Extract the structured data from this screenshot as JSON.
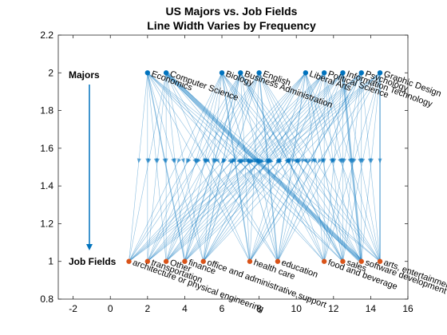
{
  "chart_data": {
    "type": "line",
    "title": "US Majors vs. Job Fields",
    "subtitle": "Line Width Varies by Frequency",
    "xlim": [
      -2.8,
      16
    ],
    "ylim": [
      0.8,
      2.2
    ],
    "xticks": [
      -2,
      0,
      2,
      4,
      6,
      8,
      10,
      12,
      14,
      16
    ],
    "yticks": [
      0.8,
      1,
      1.2,
      1.4,
      1.6,
      1.8,
      2,
      2.2
    ],
    "grid": false,
    "arrowhead_y": 1.52,
    "majors": {
      "label": "Majors",
      "y": 2,
      "color": "#0072BD",
      "nodes": [
        {
          "name": "Economics",
          "x": 2
        },
        {
          "name": "Computer Science",
          "x": 3
        },
        {
          "name": "Biology",
          "x": 6
        },
        {
          "name": "Business Administration",
          "x": 7
        },
        {
          "name": "English",
          "x": 8
        },
        {
          "name": "Liberal Arts",
          "x": 10.5
        },
        {
          "name": "Political Science",
          "x": 11.5
        },
        {
          "name": "Information Technology",
          "x": 12.5
        },
        {
          "name": "Psychology",
          "x": 13.5
        },
        {
          "name": "Graphic Design",
          "x": 14.5
        }
      ]
    },
    "jobs": {
      "label": "Job Fields",
      "y": 1,
      "color": "#D95319",
      "nodes": [
        {
          "name": "architecture or physical engineering",
          "x": 1
        },
        {
          "name": "transportation",
          "x": 2
        },
        {
          "name": "Other",
          "x": 3
        },
        {
          "name": "finance",
          "x": 4
        },
        {
          "name": "office and administrative support",
          "x": 5
        },
        {
          "name": "health care",
          "x": 7.5
        },
        {
          "name": "education",
          "x": 9
        },
        {
          "name": "food and beverage",
          "x": 11.5
        },
        {
          "name": "sales",
          "x": 12.5
        },
        {
          "name": "software development and",
          "x": 13.5
        },
        {
          "name": "arts, entertainment",
          "x": 14.5
        }
      ]
    },
    "edges": [
      {
        "from": 0,
        "to": 0,
        "w": 0.6
      },
      {
        "from": 0,
        "to": 1,
        "w": 0.6
      },
      {
        "from": 0,
        "to": 2,
        "w": 0.6
      },
      {
        "from": 0,
        "to": 3,
        "w": 1.4
      },
      {
        "from": 0,
        "to": 4,
        "w": 0.6
      },
      {
        "from": 0,
        "to": 5,
        "w": 0.6
      },
      {
        "from": 0,
        "to": 6,
        "w": 0.6
      },
      {
        "from": 0,
        "to": 7,
        "w": 0.6
      },
      {
        "from": 0,
        "to": 8,
        "w": 0.8
      },
      {
        "from": 0,
        "to": 9,
        "w": 0.6
      },
      {
        "from": 0,
        "to": 10,
        "w": 0.6
      },
      {
        "from": 1,
        "to": 0,
        "w": 0.6
      },
      {
        "from": 1,
        "to": 1,
        "w": 0.6
      },
      {
        "from": 1,
        "to": 2,
        "w": 0.6
      },
      {
        "from": 1,
        "to": 3,
        "w": 0.6
      },
      {
        "from": 1,
        "to": 4,
        "w": 0.6
      },
      {
        "from": 1,
        "to": 5,
        "w": 0.6
      },
      {
        "from": 1,
        "to": 6,
        "w": 0.6
      },
      {
        "from": 1,
        "to": 7,
        "w": 0.6
      },
      {
        "from": 1,
        "to": 8,
        "w": 0.6
      },
      {
        "from": 1,
        "to": 9,
        "w": 5
      },
      {
        "from": 1,
        "to": 10,
        "w": 0.6
      },
      {
        "from": 2,
        "to": 0,
        "w": 0.6
      },
      {
        "from": 2,
        "to": 1,
        "w": 0.6
      },
      {
        "from": 2,
        "to": 2,
        "w": 0.6
      },
      {
        "from": 2,
        "to": 3,
        "w": 0.6
      },
      {
        "from": 2,
        "to": 4,
        "w": 0.6
      },
      {
        "from": 2,
        "to": 5,
        "w": 1.4
      },
      {
        "from": 2,
        "to": 6,
        "w": 0.8
      },
      {
        "from": 2,
        "to": 7,
        "w": 0.6
      },
      {
        "from": 2,
        "to": 8,
        "w": 0.6
      },
      {
        "from": 2,
        "to": 9,
        "w": 0.6
      },
      {
        "from": 2,
        "to": 10,
        "w": 0.6
      },
      {
        "from": 3,
        "to": 0,
        "w": 0.6
      },
      {
        "from": 3,
        "to": 1,
        "w": 0.6
      },
      {
        "from": 3,
        "to": 2,
        "w": 0.6
      },
      {
        "from": 3,
        "to": 3,
        "w": 1.2
      },
      {
        "from": 3,
        "to": 4,
        "w": 1
      },
      {
        "from": 3,
        "to": 5,
        "w": 0.6
      },
      {
        "from": 3,
        "to": 6,
        "w": 0.6
      },
      {
        "from": 3,
        "to": 7,
        "w": 0.6
      },
      {
        "from": 3,
        "to": 8,
        "w": 1.4
      },
      {
        "from": 3,
        "to": 9,
        "w": 0.6
      },
      {
        "from": 3,
        "to": 10,
        "w": 0.6
      },
      {
        "from": 4,
        "to": 0,
        "w": 0.6
      },
      {
        "from": 4,
        "to": 1,
        "w": 0.6
      },
      {
        "from": 4,
        "to": 2,
        "w": 0.6
      },
      {
        "from": 4,
        "to": 3,
        "w": 0.6
      },
      {
        "from": 4,
        "to": 4,
        "w": 0.8
      },
      {
        "from": 4,
        "to": 5,
        "w": 0.6
      },
      {
        "from": 4,
        "to": 6,
        "w": 1.4
      },
      {
        "from": 4,
        "to": 7,
        "w": 0.6
      },
      {
        "from": 4,
        "to": 8,
        "w": 0.6
      },
      {
        "from": 4,
        "to": 9,
        "w": 0.6
      },
      {
        "from": 4,
        "to": 10,
        "w": 0.6
      },
      {
        "from": 5,
        "to": 0,
        "w": 0.6
      },
      {
        "from": 5,
        "to": 1,
        "w": 0.6
      },
      {
        "from": 5,
        "to": 2,
        "w": 0.8
      },
      {
        "from": 5,
        "to": 3,
        "w": 0.6
      },
      {
        "from": 5,
        "to": 4,
        "w": 0.8
      },
      {
        "from": 5,
        "to": 5,
        "w": 0.6
      },
      {
        "from": 5,
        "to": 6,
        "w": 1
      },
      {
        "from": 5,
        "to": 7,
        "w": 0.6
      },
      {
        "from": 5,
        "to": 8,
        "w": 0.8
      },
      {
        "from": 5,
        "to": 9,
        "w": 0.6
      },
      {
        "from": 5,
        "to": 10,
        "w": 0.6
      },
      {
        "from": 6,
        "to": 0,
        "w": 0.6
      },
      {
        "from": 6,
        "to": 1,
        "w": 0.6
      },
      {
        "from": 6,
        "to": 2,
        "w": 0.6
      },
      {
        "from": 6,
        "to": 3,
        "w": 0.6
      },
      {
        "from": 6,
        "to": 4,
        "w": 1
      },
      {
        "from": 6,
        "to": 5,
        "w": 0.6
      },
      {
        "from": 6,
        "to": 6,
        "w": 0.6
      },
      {
        "from": 6,
        "to": 7,
        "w": 0.6
      },
      {
        "from": 6,
        "to": 8,
        "w": 0.6
      },
      {
        "from": 6,
        "to": 9,
        "w": 0.6
      },
      {
        "from": 6,
        "to": 10,
        "w": 0.6
      },
      {
        "from": 7,
        "to": 0,
        "w": 0.6
      },
      {
        "from": 7,
        "to": 1,
        "w": 0.6
      },
      {
        "from": 7,
        "to": 2,
        "w": 0.6
      },
      {
        "from": 7,
        "to": 3,
        "w": 0.6
      },
      {
        "from": 7,
        "to": 4,
        "w": 0.6
      },
      {
        "from": 7,
        "to": 5,
        "w": 0.6
      },
      {
        "from": 7,
        "to": 6,
        "w": 0.6
      },
      {
        "from": 7,
        "to": 7,
        "w": 0.6
      },
      {
        "from": 7,
        "to": 8,
        "w": 0.6
      },
      {
        "from": 7,
        "to": 9,
        "w": 2.5
      },
      {
        "from": 7,
        "to": 10,
        "w": 0.6
      },
      {
        "from": 8,
        "to": 0,
        "w": 0.6
      },
      {
        "from": 8,
        "to": 1,
        "w": 0.6
      },
      {
        "from": 8,
        "to": 2,
        "w": 0.6
      },
      {
        "from": 8,
        "to": 3,
        "w": 0.6
      },
      {
        "from": 8,
        "to": 4,
        "w": 0.6
      },
      {
        "from": 8,
        "to": 5,
        "w": 1.2
      },
      {
        "from": 8,
        "to": 6,
        "w": 0.8
      },
      {
        "from": 8,
        "to": 7,
        "w": 0.6
      },
      {
        "from": 8,
        "to": 8,
        "w": 0.6
      },
      {
        "from": 8,
        "to": 9,
        "w": 0.6
      },
      {
        "from": 8,
        "to": 10,
        "w": 0.6
      },
      {
        "from": 9,
        "to": 0,
        "w": 0.6
      },
      {
        "from": 9,
        "to": 1,
        "w": 0.6
      },
      {
        "from": 9,
        "to": 2,
        "w": 0.6
      },
      {
        "from": 9,
        "to": 3,
        "w": 0.6
      },
      {
        "from": 9,
        "to": 4,
        "w": 0.6
      },
      {
        "from": 9,
        "to": 5,
        "w": 0.6
      },
      {
        "from": 9,
        "to": 6,
        "w": 0.6
      },
      {
        "from": 9,
        "to": 7,
        "w": 0.6
      },
      {
        "from": 9,
        "to": 8,
        "w": 0.6
      },
      {
        "from": 9,
        "to": 9,
        "w": 0.6
      },
      {
        "from": 9,
        "to": 10,
        "w": 1.8
      }
    ]
  }
}
